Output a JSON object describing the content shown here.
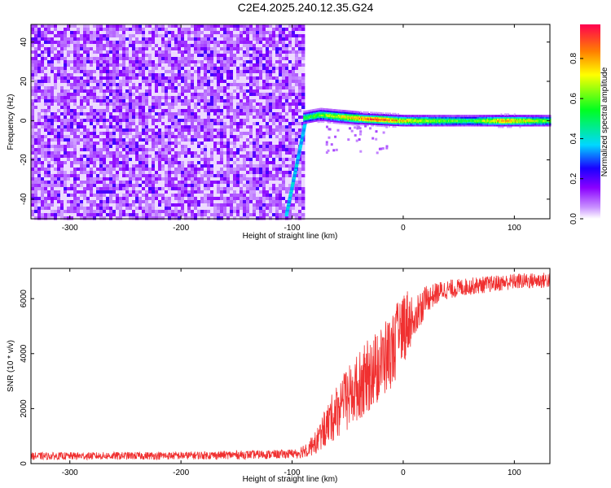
{
  "title": "C2E4.2025.240.12.35.G24",
  "chart_data": [
    {
      "type": "heatmap",
      "xlabel": "Height of straight line (km)",
      "ylabel": "Frequency (Hz)",
      "xlim": [
        -335,
        132
      ],
      "ylim": [
        -50,
        49
      ],
      "xticks": [
        -300,
        -200,
        -100,
        0,
        100
      ],
      "yticks": [
        -40,
        -20,
        0,
        20,
        40
      ],
      "colorbar": {
        "label": "Normalized spectral amplitude",
        "range": [
          0,
          0.97
        ],
        "ticks": [
          0,
          0.2,
          0.4,
          0.6,
          0.8
        ]
      },
      "features": {
        "noise_region_x": [
          -335,
          -90
        ],
        "noise_amplitude": 0.12,
        "diagonal_trace": {
          "x": [
            -105,
            -87
          ],
          "y": [
            -48,
            2
          ],
          "amplitude": 0.4
        },
        "carrier": {
          "x": [
            -90,
            132
          ],
          "center_hz": [
            [
              -90,
              1.5
            ],
            [
              -75,
              3
            ],
            [
              -55,
              2
            ],
            [
              -35,
              1
            ],
            [
              0,
              0
            ],
            [
              132,
              0
            ]
          ],
          "peak_amplitude": [
            [
              -88,
              0.55
            ],
            [
              -60,
              0.7
            ],
            [
              -22,
              0.95
            ],
            [
              0,
              0.75
            ],
            [
              60,
              0.55
            ],
            [
              90,
              0.85
            ],
            [
              132,
              0.6
            ]
          ]
        }
      },
      "grid": false
    },
    {
      "type": "line",
      "xlabel": "Height of straight line (km)",
      "ylabel": "SNR (10 * v/v)",
      "xlim": [
        -335,
        132
      ],
      "ylim": [
        0,
        7100
      ],
      "xticks": [
        -300,
        -200,
        -100,
        0,
        100
      ],
      "yticks": [
        0,
        2000,
        4000,
        6000
      ],
      "color": "#f03030",
      "envelope": {
        "x": [
          -335,
          -200,
          -110,
          -95,
          -80,
          -70,
          -60,
          -45,
          -30,
          -15,
          -5,
          0,
          10,
          20,
          35,
          60,
          100,
          132
        ],
        "low": [
          120,
          130,
          160,
          180,
          300,
          600,
          900,
          1400,
          1900,
          2500,
          3100,
          3600,
          4500,
          5400,
          5900,
          6100,
          6300,
          6350
        ],
        "high": [
          420,
          450,
          520,
          560,
          1100,
          2000,
          2900,
          3800,
          4600,
          5200,
          5900,
          6500,
          6200,
          6500,
          6700,
          6800,
          6950,
          7000
        ]
      },
      "grid": false
    }
  ]
}
